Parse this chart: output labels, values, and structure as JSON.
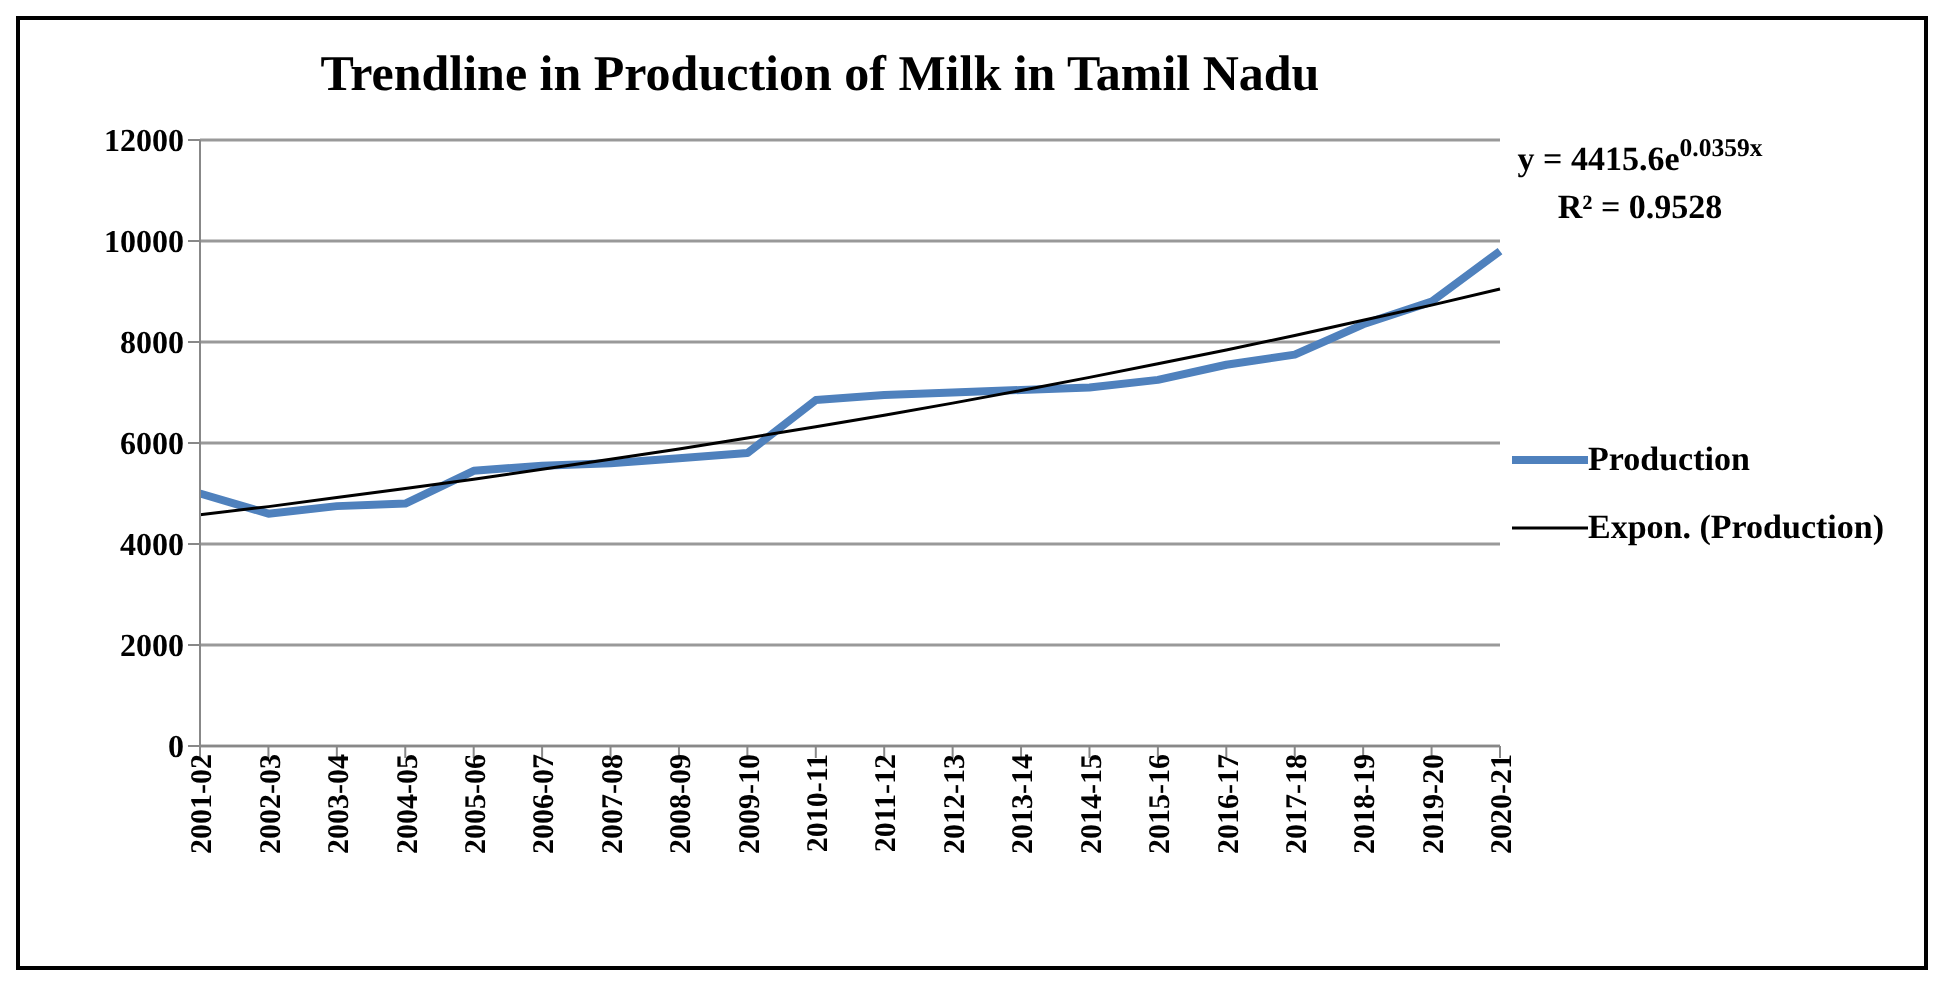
{
  "chart_data": {
    "type": "line",
    "title": "Trendline in Production of Milk in Tamil Nadu",
    "categories": [
      "2001-02",
      "2002-03",
      "2003-04",
      "2004-05",
      "2005-06",
      "2006-07",
      "2007-08",
      "2008-09",
      "2009-10",
      "2010-11",
      "2011-12",
      "2012-13",
      "2013-14",
      "2014-15",
      "2015-16",
      "2016-17",
      "2017-18",
      "2018-19",
      "2019-20",
      "2020-21"
    ],
    "series": [
      {
        "name": "Production",
        "color": "#4f81bd",
        "values": [
          5000,
          4600,
          4750,
          4800,
          5450,
          5550,
          5600,
          5700,
          5800,
          6850,
          6950,
          7000,
          7050,
          7100,
          7250,
          7550,
          7750,
          8350,
          8800,
          9800
        ]
      },
      {
        "name": "Expon. (Production)",
        "color": "#000000",
        "values": [
          4580,
          4740,
          4920,
          5100,
          5280,
          5480,
          5680,
          5880,
          6100,
          6320,
          6550,
          6790,
          7040,
          7300,
          7570,
          7840,
          8130,
          8430,
          8730,
          9050
        ]
      }
    ],
    "ylim": [
      0,
      12000
    ],
    "yticks": [
      0,
      2000,
      4000,
      6000,
      8000,
      10000,
      12000
    ],
    "grid": "y",
    "legend": "right",
    "marker": "none",
    "annotations": [
      "y = 4415.6e$^{0.0359x}$",
      "R² = 0.9528"
    ]
  }
}
